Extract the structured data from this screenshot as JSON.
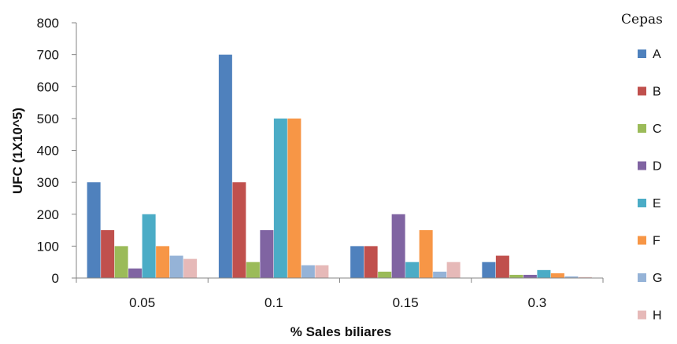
{
  "chart_data": {
    "type": "bar",
    "title": "",
    "xlabel": "% Sales biliares",
    "ylabel": "UFC (1X10^5)",
    "ylim": [
      0,
      800
    ],
    "yticks": [
      0,
      100,
      200,
      300,
      400,
      500,
      600,
      700,
      800
    ],
    "categories": [
      "0.05",
      "0.1",
      "0.15",
      "0.3"
    ],
    "legend_title": "Cepas",
    "legend_position": "right",
    "grid": false,
    "series": [
      {
        "name": "A",
        "color": "#4F81BD",
        "values": [
          300,
          700,
          100,
          50
        ]
      },
      {
        "name": "B",
        "color": "#C0504D",
        "values": [
          150,
          300,
          100,
          70
        ]
      },
      {
        "name": "C",
        "color": "#9BBB59",
        "values": [
          100,
          50,
          20,
          10
        ]
      },
      {
        "name": "D",
        "color": "#8064A2",
        "values": [
          30,
          150,
          200,
          10
        ]
      },
      {
        "name": "E",
        "color": "#4BACC6",
        "values": [
          200,
          500,
          50,
          25
        ]
      },
      {
        "name": "F",
        "color": "#F79646",
        "values": [
          100,
          500,
          150,
          15
        ]
      },
      {
        "name": "G",
        "color": "#95B3D7",
        "values": [
          70,
          40,
          20,
          5
        ]
      },
      {
        "name": "H",
        "color": "#E6B9B8",
        "values": [
          60,
          40,
          50,
          3
        ]
      }
    ]
  }
}
